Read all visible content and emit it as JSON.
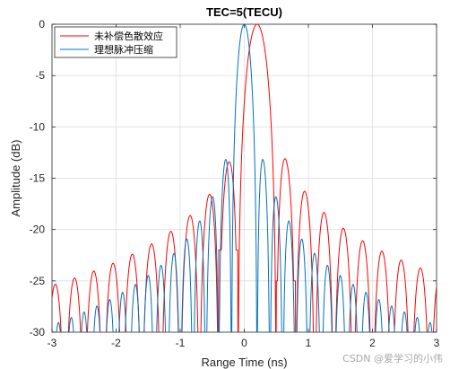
{
  "watermark": "CSDN @爱学习的小伟",
  "chart_data": {
    "type": "line",
    "title": "TEC=5(TECU)",
    "xlabel": "Range Time (ns)",
    "ylabel": "Amplitude (dB)",
    "xlim": [
      -3,
      3
    ],
    "ylim": [
      -30,
      0
    ],
    "xticks": [
      "-3",
      "-2",
      "-1",
      "0",
      "1",
      "2",
      "3"
    ],
    "yticks": [
      "0",
      "-5",
      "-10",
      "-15",
      "-20",
      "-25",
      "-30"
    ],
    "grid": true,
    "legend_position": "top-left",
    "series": [
      {
        "name": "未补偿色散效应",
        "color": "#ff0000",
        "peak_x": 0.2,
        "first_null_offset": 0.3,
        "first_sidelobe_peaks_db": [
          -13.5,
          -13.2
        ],
        "sidelobe_decay_db": 14.0,
        "nulls_near_main_lobe_db": [
          -22,
          -25
        ]
      },
      {
        "name": "理想脉冲压缩",
        "color": "#0072bd",
        "peak_x": 0.0,
        "first_null_offset": 0.2,
        "first_sidelobe_peaks_db": [
          -13.3,
          -13.3
        ],
        "sidelobe_decay_db": 16.0,
        "nulls_near_main_lobe_db": [
          -30,
          -30
        ]
      }
    ]
  }
}
